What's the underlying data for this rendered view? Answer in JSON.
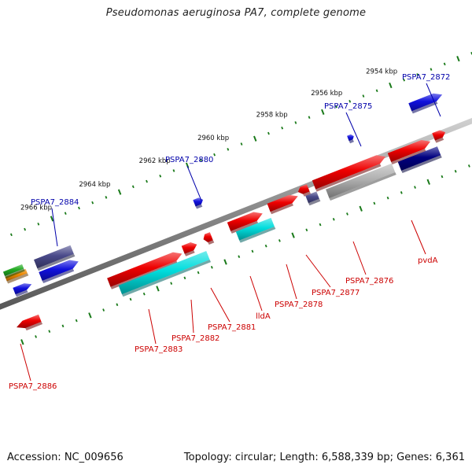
{
  "title": "Pseudomonas aeruginosa PA7, complete genome",
  "footer": {
    "accession": "Accession: NC_009656",
    "topology": "Topology: circular; Length: 6,588,339 bp; Genes: 6,361"
  },
  "colors": {
    "backbone": "#777777",
    "tick_major": "#1a7a1a",
    "tick_minor": "#1a7a1a",
    "label_red": "#cc0000",
    "label_blue": "#0000aa",
    "gene_red": "#ee0000",
    "gene_blue": "#1010dd",
    "gene_navy": "#000080",
    "gene_slate": "#4a4a8a",
    "gene_cyan": "#00dddd",
    "gene_gray": "#b0b0b0",
    "gene_green": "#22aa22",
    "gene_orange": "#ee8800"
  },
  "scale_labels": [
    "2954 kbp",
    "2956 kbp",
    "2958 kbp",
    "2960 kbp",
    "2962 kbp",
    "2964 kbp",
    "2966 kbp"
  ],
  "gene_labels": {
    "blue": [
      "PSPA7_2872",
      "PSPA7_2875",
      "PSPA7_2880",
      "PSPA7_2884"
    ],
    "red": [
      "pvdA",
      "PSPA7_2876",
      "PSPA7_2877",
      "PSPA7_2878",
      "lldA",
      "PSPA7_2881",
      "PSPA7_2882",
      "PSPA7_2883",
      "PSPA7_2886"
    ]
  }
}
